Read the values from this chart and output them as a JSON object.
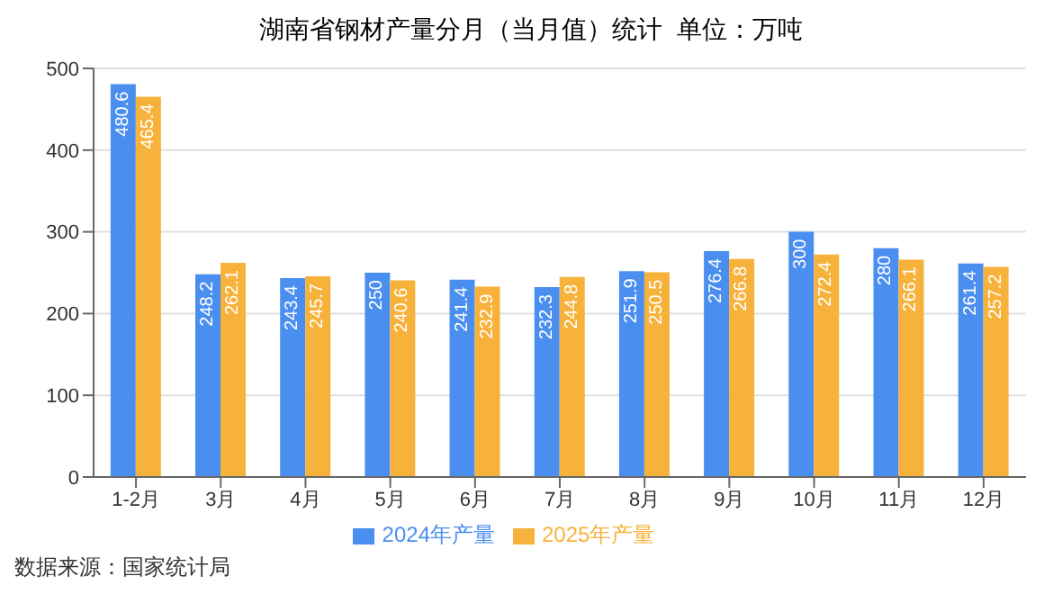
{
  "chart_data": {
    "type": "bar",
    "title": "湖南省钢材产量分月（当月值）统计  单位：万吨",
    "categories": [
      "1-2月",
      "3月",
      "4月",
      "5月",
      "6月",
      "7月",
      "8月",
      "9月",
      "10月",
      "11月",
      "12月"
    ],
    "series": [
      {
        "name": "2024年产量",
        "color": "#4a8ef0",
        "values": [
          480.6,
          248.2,
          243.4,
          250,
          241.4,
          232.3,
          251.9,
          276.4,
          300,
          280,
          261.4
        ]
      },
      {
        "name": "2025年产量",
        "color": "#f7b23b",
        "values": [
          465.4,
          262.1,
          245.7,
          240.6,
          232.9,
          244.8,
          250.5,
          266.8,
          272.4,
          266.1,
          257.2
        ]
      }
    ],
    "ylim": [
      0,
      500
    ],
    "yticks": [
      0,
      100,
      200,
      300,
      400,
      500
    ],
    "grid": "y",
    "legend": "bottom",
    "data_labels": true,
    "annotations": [
      "数据来源：国家统计局"
    ]
  }
}
